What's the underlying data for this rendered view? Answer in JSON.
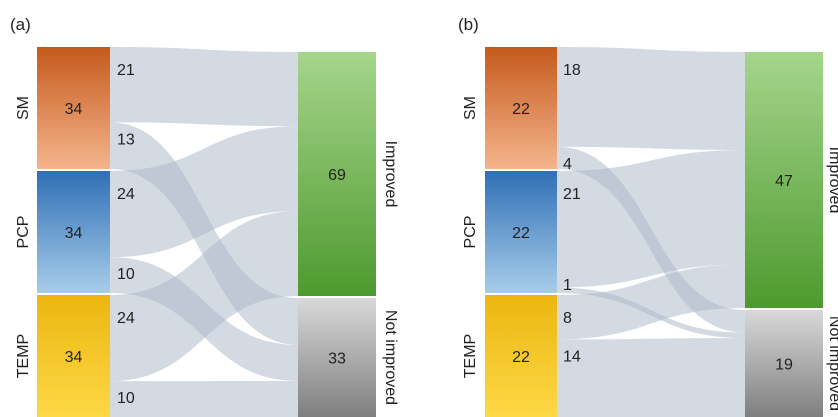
{
  "colors": {
    "flow": "#a9b5c6",
    "SM": [
      "#c55a1c",
      "#f5b48c"
    ],
    "PCP": [
      "#2f6fb6",
      "#a8cdea"
    ],
    "TEMP": [
      "#ecb60f",
      "#fdd846"
    ],
    "Improved": [
      "#a6d58c",
      "#4e9a2f"
    ],
    "NotImproved": [
      "#d9d9d9",
      "#7f7f7f"
    ]
  },
  "panels": [
    {
      "label": "(a)",
      "sources": [
        {
          "name": "SM",
          "total": "34",
          "improved": "21",
          "not_improved": "13"
        },
        {
          "name": "PCP",
          "total": "34",
          "improved": "24",
          "not_improved": "10"
        },
        {
          "name": "TEMP",
          "total": "34",
          "improved": "24",
          "not_improved": "10"
        }
      ],
      "targets": {
        "improved": {
          "name": "Improved",
          "value": "69"
        },
        "not_improved": {
          "name": "Not improved",
          "value": "33"
        }
      }
    },
    {
      "label": "(b)",
      "sources": [
        {
          "name": "SM",
          "total": "22",
          "improved": "18",
          "not_improved": "4"
        },
        {
          "name": "PCP",
          "total": "22",
          "improved": "21",
          "not_improved": "1"
        },
        {
          "name": "TEMP",
          "total": "22",
          "improved": "8",
          "not_improved": "14"
        }
      ],
      "targets": {
        "improved": {
          "name": "Improved",
          "value": "47"
        },
        "not_improved": {
          "name": "Not improved",
          "value": "19"
        }
      }
    }
  ]
}
